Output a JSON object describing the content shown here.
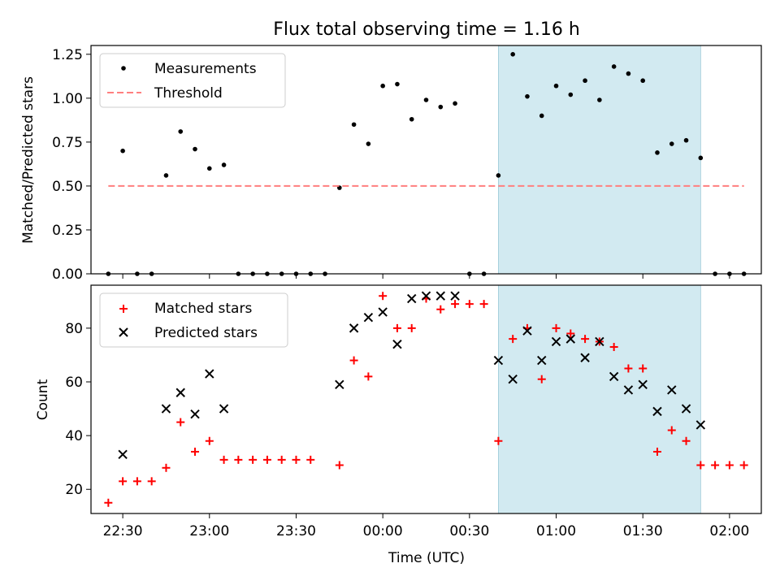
{
  "chart_data": [
    {
      "type": "scatter",
      "title": "Flux total observing time = 1.16 h",
      "xlabel": "",
      "ylabel": "Matched/Predicted stars",
      "ylim": [
        0,
        1.3
      ],
      "yticks": [
        "0.00",
        "0.25",
        "0.50",
        "0.75",
        "1.00",
        "1.25"
      ],
      "legend": {
        "placement": "top-left",
        "entries": [
          "Measurements",
          "Threshold"
        ]
      },
      "series": [
        {
          "name": "Measurements",
          "marker": "dot",
          "color": "#000000",
          "points": [
            [
              "22:25",
              0.0
            ],
            [
              "22:30",
              0.7
            ],
            [
              "22:35",
              0.0
            ],
            [
              "22:40",
              0.0
            ],
            [
              "22:45",
              0.56
            ],
            [
              "22:50",
              0.81
            ],
            [
              "22:55",
              0.71
            ],
            [
              "23:00",
              0.6
            ],
            [
              "23:05",
              0.62
            ],
            [
              "23:10",
              0.0
            ],
            [
              "23:15",
              0.0
            ],
            [
              "23:20",
              0.0
            ],
            [
              "23:25",
              0.0
            ],
            [
              "23:30",
              0.0
            ],
            [
              "23:35",
              0.0
            ],
            [
              "23:40",
              0.0
            ],
            [
              "23:45",
              0.49
            ],
            [
              "23:50",
              0.85
            ],
            [
              "23:55",
              0.74
            ],
            [
              "00:00",
              1.07
            ],
            [
              "00:05",
              1.08
            ],
            [
              "00:10",
              0.88
            ],
            [
              "00:15",
              0.99
            ],
            [
              "00:20",
              0.95
            ],
            [
              "00:25",
              0.97
            ],
            [
              "00:30",
              0.0
            ],
            [
              "00:35",
              0.0
            ],
            [
              "00:40",
              0.56
            ],
            [
              "00:45",
              1.25
            ],
            [
              "00:50",
              1.01
            ],
            [
              "00:55",
              0.9
            ],
            [
              "01:00",
              1.07
            ],
            [
              "01:05",
              1.02
            ],
            [
              "01:10",
              1.1
            ],
            [
              "01:15",
              0.99
            ],
            [
              "01:20",
              1.18
            ],
            [
              "01:25",
              1.14
            ],
            [
              "01:30",
              1.1
            ],
            [
              "01:35",
              0.69
            ],
            [
              "01:40",
              0.74
            ],
            [
              "01:45",
              0.76
            ],
            [
              "01:50",
              0.66
            ],
            [
              "01:55",
              0.0
            ],
            [
              "02:00",
              0.0
            ],
            [
              "02:05",
              0.0
            ]
          ]
        },
        {
          "name": "Threshold",
          "style": "dashed",
          "color": "#ff7f7f",
          "points": [
            [
              "22:25",
              0.5
            ],
            [
              "02:05",
              0.5
            ]
          ]
        }
      ],
      "shaded_span": {
        "from": "00:40",
        "to": "01:50",
        "color": "#add8e6"
      }
    },
    {
      "type": "scatter",
      "title": "",
      "xlabel": "Time (UTC)",
      "ylabel": "Count",
      "ylim": [
        11,
        96
      ],
      "yticks": [
        "20",
        "40",
        "60",
        "80"
      ],
      "xticks": [
        "22:30",
        "23:00",
        "23:30",
        "00:00",
        "00:30",
        "01:00",
        "01:30",
        "02:00"
      ],
      "legend": {
        "placement": "top-left",
        "entries": [
          "Matched stars",
          "Predicted stars"
        ]
      },
      "series": [
        {
          "name": "Matched stars",
          "marker": "plus",
          "color": "#ff0000",
          "points": [
            [
              "22:25",
              15
            ],
            [
              "22:30",
              23
            ],
            [
              "22:35",
              23
            ],
            [
              "22:40",
              23
            ],
            [
              "22:45",
              28
            ],
            [
              "22:50",
              45
            ],
            [
              "22:55",
              34
            ],
            [
              "23:00",
              38
            ],
            [
              "23:05",
              31
            ],
            [
              "23:10",
              31
            ],
            [
              "23:15",
              31
            ],
            [
              "23:20",
              31
            ],
            [
              "23:25",
              31
            ],
            [
              "23:30",
              31
            ],
            [
              "23:35",
              31
            ],
            [
              "23:45",
              29
            ],
            [
              "23:50",
              68
            ],
            [
              "23:55",
              62
            ],
            [
              "00:00",
              92
            ],
            [
              "00:05",
              80
            ],
            [
              "00:10",
              80
            ],
            [
              "00:15",
              91
            ],
            [
              "00:20",
              87
            ],
            [
              "00:25",
              89
            ],
            [
              "00:30",
              89
            ],
            [
              "00:35",
              89
            ],
            [
              "00:40",
              38
            ],
            [
              "00:45",
              76
            ],
            [
              "00:50",
              80
            ],
            [
              "00:55",
              61
            ],
            [
              "01:00",
              80
            ],
            [
              "01:05",
              78
            ],
            [
              "01:10",
              76
            ],
            [
              "01:15",
              75
            ],
            [
              "01:20",
              73
            ],
            [
              "01:25",
              65
            ],
            [
              "01:30",
              65
            ],
            [
              "01:35",
              34
            ],
            [
              "01:40",
              42
            ],
            [
              "01:45",
              38
            ],
            [
              "01:50",
              29
            ],
            [
              "01:55",
              29
            ],
            [
              "02:00",
              29
            ],
            [
              "02:05",
              29
            ]
          ]
        },
        {
          "name": "Predicted stars",
          "marker": "x",
          "color": "#000000",
          "points": [
            [
              "22:30",
              33
            ],
            [
              "22:45",
              50
            ],
            [
              "22:50",
              56
            ],
            [
              "22:55",
              48
            ],
            [
              "23:00",
              63
            ],
            [
              "23:05",
              50
            ],
            [
              "23:45",
              59
            ],
            [
              "23:50",
              80
            ],
            [
              "23:55",
              84
            ],
            [
              "00:00",
              86
            ],
            [
              "00:05",
              74
            ],
            [
              "00:10",
              91
            ],
            [
              "00:15",
              92
            ],
            [
              "00:20",
              92
            ],
            [
              "00:25",
              92
            ],
            [
              "00:40",
              68
            ],
            [
              "00:45",
              61
            ],
            [
              "00:50",
              79
            ],
            [
              "00:55",
              68
            ],
            [
              "01:00",
              75
            ],
            [
              "01:05",
              76
            ],
            [
              "01:10",
              69
            ],
            [
              "01:15",
              75
            ],
            [
              "01:20",
              62
            ],
            [
              "01:25",
              57
            ],
            [
              "01:30",
              59
            ],
            [
              "01:35",
              49
            ],
            [
              "01:40",
              57
            ],
            [
              "01:45",
              50
            ],
            [
              "01:50",
              44
            ]
          ]
        }
      ],
      "shaded_span": {
        "from": "00:40",
        "to": "01:50",
        "color": "#add8e6"
      }
    }
  ]
}
